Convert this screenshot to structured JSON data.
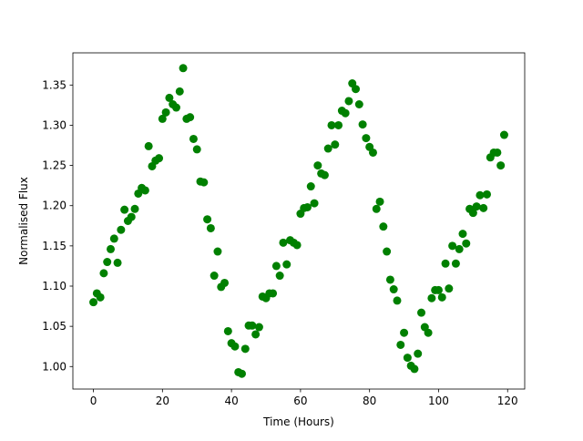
{
  "chart_data": {
    "type": "scatter",
    "x_label": "Time (Hours)",
    "y_label": "Normalised Flux",
    "color": "#008000",
    "x": [
      0,
      1,
      2,
      3,
      4,
      5,
      6,
      7,
      8,
      9,
      10,
      11,
      12,
      13,
      14,
      15,
      16,
      17,
      18,
      19,
      20,
      21,
      22,
      23,
      24,
      25,
      26,
      27,
      28,
      29,
      30,
      31,
      32,
      33,
      34,
      35,
      36,
      37,
      38,
      39,
      40,
      41,
      42,
      43,
      44,
      45,
      46,
      47,
      48,
      49,
      50,
      51,
      52,
      53,
      54,
      55,
      56,
      57,
      58,
      59,
      60,
      61,
      62,
      63,
      64,
      65,
      66,
      67,
      68,
      69,
      70,
      71,
      72,
      73,
      74,
      75,
      76,
      77,
      78,
      79,
      80,
      81,
      82,
      83,
      84,
      85,
      86,
      87,
      88,
      89,
      90,
      91,
      92,
      93,
      94,
      95,
      96,
      97,
      98,
      99,
      100,
      101,
      102,
      103,
      104,
      105,
      106,
      107,
      108,
      109,
      110,
      111,
      112,
      113,
      114,
      115,
      116,
      117,
      118,
      119
    ],
    "values": [
      1.08,
      1.091,
      1.086,
      1.116,
      1.13,
      1.146,
      1.159,
      1.129,
      1.17,
      1.195,
      1.181,
      1.186,
      1.196,
      1.215,
      1.222,
      1.219,
      1.274,
      1.249,
      1.256,
      1.259,
      1.308,
      1.316,
      1.334,
      1.326,
      1.322,
      1.342,
      1.371,
      1.308,
      1.31,
      1.283,
      1.27,
      1.23,
      1.229,
      1.183,
      1.172,
      1.113,
      1.143,
      1.099,
      1.104,
      1.044,
      1.029,
      1.025,
      0.993,
      0.991,
      1.022,
      1.051,
      1.051,
      1.04,
      1.049,
      1.087,
      1.085,
      1.091,
      1.091,
      1.125,
      1.113,
      1.154,
      1.127,
      1.157,
      1.154,
      1.151,
      1.19,
      1.197,
      1.198,
      1.224,
      1.203,
      1.25,
      1.24,
      1.238,
      1.271,
      1.3,
      1.276,
      1.3,
      1.318,
      1.315,
      1.33,
      1.352,
      1.345,
      1.326,
      1.301,
      1.284,
      1.273,
      1.266,
      1.196,
      1.205,
      1.174,
      1.143,
      1.108,
      1.096,
      1.082,
      1.027,
      1.042,
      1.011,
      1.001,
      0.997,
      1.016,
      1.067,
      1.049,
      1.042,
      1.085,
      1.095,
      1.095,
      1.086,
      1.128,
      1.097,
      1.15,
      1.128,
      1.146,
      1.165,
      1.153,
      1.196,
      1.191,
      1.199,
      1.213,
      1.197,
      1.214,
      1.26,
      1.266,
      1.266,
      1.25,
      1.288
    ],
    "xlim": [
      -5.95,
      124.95
    ],
    "ylim": [
      0.972,
      1.39
    ],
    "xticks": [
      0,
      20,
      40,
      60,
      80,
      100,
      120
    ],
    "yticks": [
      {
        "value": 1.0,
        "label": "1.00"
      },
      1.05,
      {
        "value": 1.1,
        "label": "1.10"
      },
      1.15,
      {
        "value": 1.2,
        "label": "1.20"
      },
      1.25,
      {
        "value": 1.3,
        "label": "1.30"
      },
      1.35
    ]
  }
}
